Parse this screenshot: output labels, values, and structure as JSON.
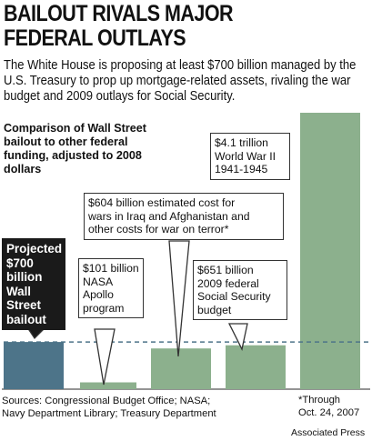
{
  "headline": [
    "BAILOUT RIVALS MAJOR",
    "FEDERAL OUTLAYS"
  ],
  "deck": "The White House is proposing at least $700 billion managed by the U.S. Treasury to prop up mortgage-related assets, rivaling the war budget and 2009 outlays for Social Security.",
  "subhead": "Comparison of Wall Street bailout to other federal funding, adjusted to 2008 dollars",
  "sources": [
    "Sources: Congressional Budget Office; NASA;",
    "Navy Department Library; Treasury Department"
  ],
  "footnote": [
    "*Through",
    "Oct. 24, 2007"
  ],
  "credit": "Associated Press",
  "colors": {
    "bailout_bar": "#4d7489",
    "other_bars": "#8cb08d",
    "reference_line": "#4d7489",
    "callout_dark": "#1a1a1a"
  },
  "chart_data": {
    "type": "bar",
    "title": "",
    "xlabel": "",
    "ylabel": "",
    "unit": "billion 2008 dollars",
    "ylim": [
      0,
      4100
    ],
    "grid": false,
    "categories": [
      "Wall Street bailout",
      "NASA Apollo program",
      "Wars in Iraq and Afghanistan",
      "2009 federal Social Security budget",
      "World War II"
    ],
    "values": [
      700,
      101,
      604,
      651,
      4100
    ],
    "reference_line": 700,
    "labels": [
      [
        "Projected",
        "$700",
        "billion",
        "Wall",
        "Street",
        "bailout"
      ],
      [
        "$101 billion",
        "NASA",
        "Apollo",
        "program"
      ],
      [
        "$604 billion estimated cost for",
        "wars in Iraq and Afghanistan and",
        "other costs for war on terror*"
      ],
      [
        "$651 billion",
        "2009 federal",
        "Social Security",
        "budget"
      ],
      [
        "$4.1 trillion",
        "World War II",
        "1941-1945"
      ]
    ]
  }
}
